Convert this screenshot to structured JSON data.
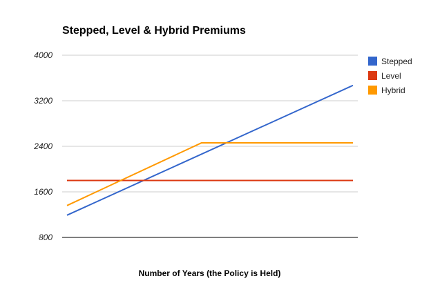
{
  "chart_data": {
    "type": "line",
    "title": "Stepped, Level & Hybrid Premiums",
    "xlabel": "Number of Years (the Policy is Held)",
    "ylabel": "",
    "x": [
      0,
      1
    ],
    "yticks": [
      800,
      1600,
      2400,
      3200,
      4000
    ],
    "ylim": [
      800,
      4000
    ],
    "grid": true,
    "legend_position": "right",
    "series": [
      {
        "name": "Stepped",
        "color": "#3366cc",
        "points": [
          [
            0,
            1190
          ],
          [
            1,
            3470
          ]
        ]
      },
      {
        "name": "Level",
        "color": "#dc3912",
        "points": [
          [
            0,
            1800
          ],
          [
            1,
            1800
          ]
        ]
      },
      {
        "name": "Hybrid",
        "color": "#ff9900",
        "points": [
          [
            0,
            1360
          ],
          [
            0.47,
            2460
          ],
          [
            1,
            2460
          ]
        ]
      }
    ]
  }
}
